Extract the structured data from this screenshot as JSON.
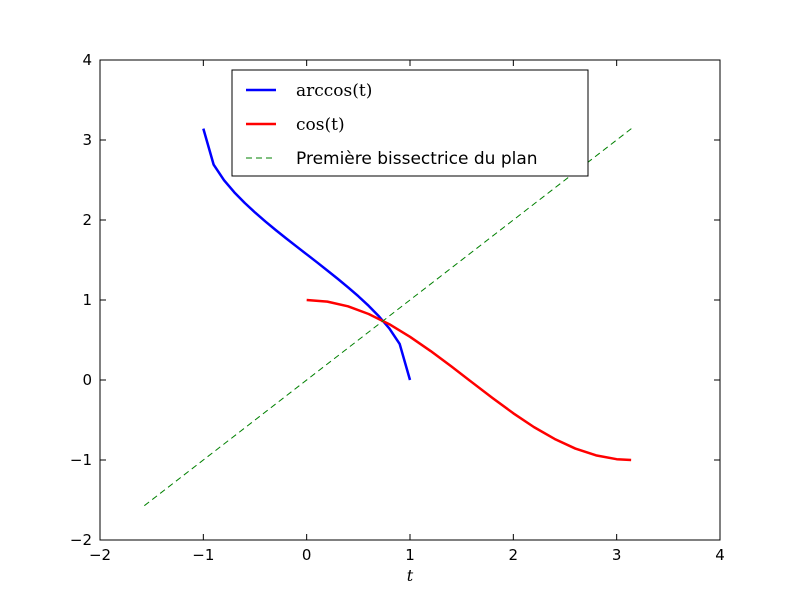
{
  "chart_data": {
    "type": "line",
    "xlabel": "t",
    "ylabel": "",
    "xlim": [
      -2,
      4
    ],
    "ylim": [
      -2,
      4
    ],
    "xticks": [
      -2,
      -1,
      0,
      1,
      2,
      3,
      4
    ],
    "yticks": [
      -2,
      -1,
      0,
      1,
      2,
      3,
      4
    ],
    "xtick_labels": [
      "−2",
      "−1",
      "0",
      "1",
      "2",
      "3",
      "4"
    ],
    "ytick_labels": [
      "−2",
      "−1",
      "0",
      "1",
      "2",
      "3",
      "4"
    ],
    "grid": false,
    "legend_position": "top-center",
    "series": [
      {
        "name": "arccos(t)",
        "color": "#0000ff",
        "style": "solid",
        "x": [
          -1.0,
          -0.9,
          -0.8,
          -0.7,
          -0.6,
          -0.5,
          -0.4,
          -0.3,
          -0.2,
          -0.1,
          0.0,
          0.1,
          0.2,
          0.3,
          0.4,
          0.5,
          0.6,
          0.7,
          0.8,
          0.9,
          1.0
        ],
        "y": [
          3.142,
          2.691,
          2.498,
          2.346,
          2.214,
          2.094,
          1.982,
          1.875,
          1.772,
          1.671,
          1.571,
          1.471,
          1.369,
          1.266,
          1.159,
          1.047,
          0.927,
          0.795,
          0.644,
          0.451,
          0.0
        ]
      },
      {
        "name": "cos(t)",
        "color": "#ff0000",
        "style": "solid",
        "x": [
          0.0,
          0.2,
          0.4,
          0.6,
          0.8,
          1.0,
          1.2,
          1.4,
          1.6,
          1.8,
          2.0,
          2.2,
          2.4,
          2.6,
          2.8,
          3.0,
          3.14
        ],
        "y": [
          1.0,
          0.98,
          0.921,
          0.825,
          0.697,
          0.54,
          0.362,
          0.17,
          -0.029,
          -0.227,
          -0.416,
          -0.589,
          -0.737,
          -0.857,
          -0.942,
          -0.99,
          -1.0
        ]
      },
      {
        "name": "Première bissectrice du plan",
        "color": "#008000",
        "style": "dashed",
        "x": [
          -1.571,
          3.142
        ],
        "y": [
          -1.571,
          3.142
        ]
      }
    ]
  }
}
